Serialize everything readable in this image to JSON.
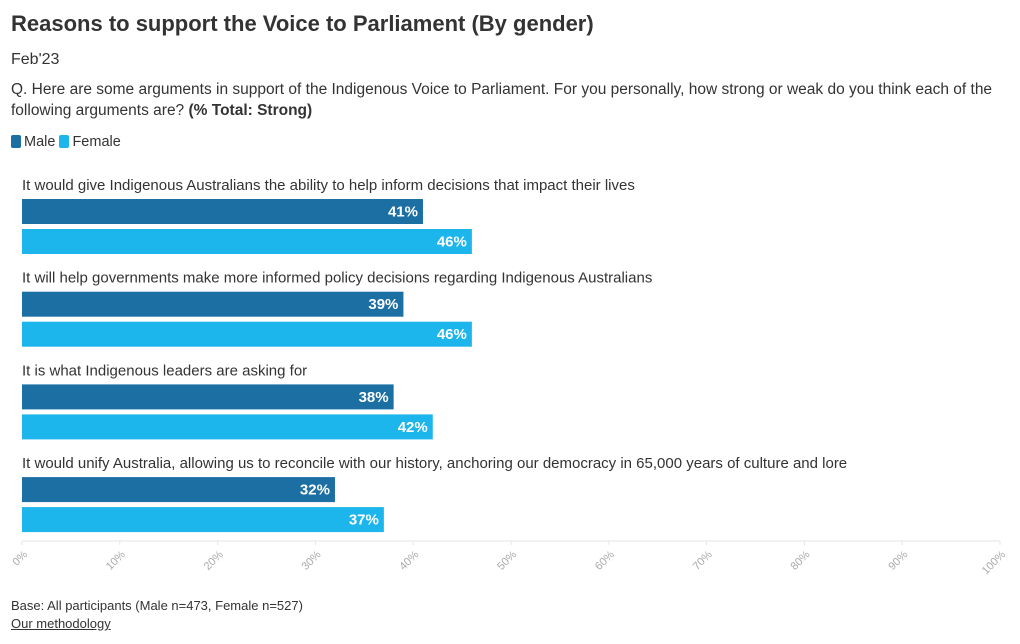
{
  "chart_data": {
    "type": "bar",
    "orientation": "horizontal",
    "title": "Reasons to support the Voice to Parliament (By gender)",
    "subtitle": "Feb'23",
    "question": "Q. Here are some arguments in support of the Indigenous Voice to Parliament. For you personally, how strong or weak do you think each of the following arguments are?",
    "question_emphasis": "(% Total: Strong)",
    "categories": [
      "It would give Indigenous Australians the ability to help inform decisions that impact their lives",
      "It will help governments make more informed policy decisions regarding Indigenous Australians",
      "It is what Indigenous leaders are asking for",
      "It would unify Australia, allowing us to reconcile with our history, anchoring our democracy in 65,000 years of culture and lore"
    ],
    "series": [
      {
        "name": "Male",
        "color": "#1b6fa2",
        "values": [
          41,
          39,
          38,
          32
        ],
        "value_labels": [
          "41%",
          "39%",
          "38%",
          "32%"
        ]
      },
      {
        "name": "Female",
        "color": "#1cb5ec",
        "values": [
          46,
          46,
          42,
          37
        ],
        "value_labels": [
          "46%",
          "46%",
          "42%",
          "37%"
        ]
      }
    ],
    "xlim": [
      0,
      100
    ],
    "xticks": [
      {
        "value": 0,
        "label": "0%"
      },
      {
        "value": 10,
        "label": "10%"
      },
      {
        "value": 20,
        "label": "20%"
      },
      {
        "value": 30,
        "label": "30%"
      },
      {
        "value": 40,
        "label": "40%"
      },
      {
        "value": 50,
        "label": "50%"
      },
      {
        "value": 60,
        "label": "60%"
      },
      {
        "value": 70,
        "label": "70%"
      },
      {
        "value": 80,
        "label": "80%"
      },
      {
        "value": 90,
        "label": "90%"
      },
      {
        "value": 100,
        "label": "100%"
      }
    ],
    "legend": "top-left",
    "footnote": "Base: All participants (Male n=473, Female n=527)",
    "link": "Our methodology"
  }
}
